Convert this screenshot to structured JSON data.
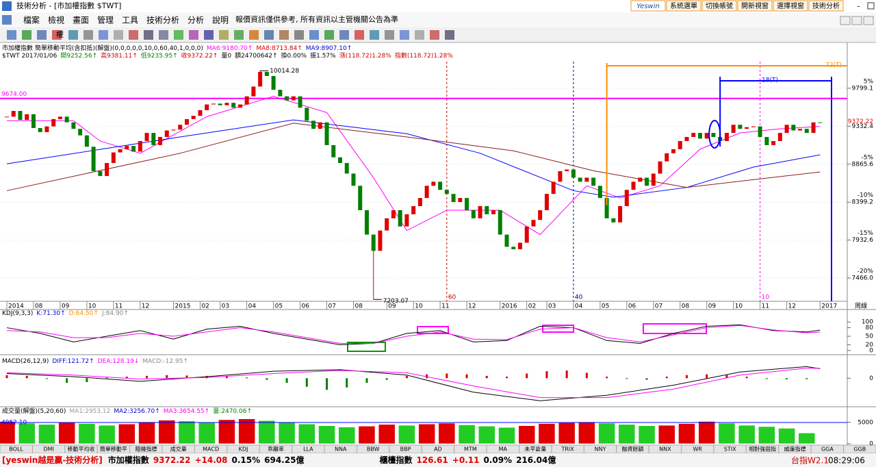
{
  "window": {
    "title": "技術分析 - [市加權指數 $TWT]",
    "buttons": [
      "Yeswin",
      "系統選單",
      "切換帳號",
      "開新視窗",
      "選擇視窗",
      "技術分析"
    ]
  },
  "menu": {
    "items": [
      "檔案",
      "檢視",
      "畫面",
      "管理",
      "工具",
      "技術分析",
      "分析",
      "說明"
    ],
    "notice": "報價資訊僅供參考, 所有資訊以主管機關公告為準"
  },
  "toolbar": {
    "label": "權"
  },
  "info": {
    "line1": [
      "市加權指數 簡單移動平均(含扣抵)(解盤)(0,0,0,0,0,10,0,60,40,1,0,0,0)",
      "MA6:9180.70↑",
      "MA8:8713.84↑",
      "MA9:8907.10↑"
    ],
    "line2": [
      "$TWT 2017/01/06",
      "開9252.56↑",
      "高9381.11↑",
      "低9235.95↑",
      "收9372.22↑",
      "量0",
      "額24700642↑",
      "換0.00%",
      "振1.57%",
      "漲(118.72)1.28%",
      "指數(118.72)1.28%"
    ]
  },
  "chart_data": [
    {
      "type": "candlestick",
      "up_color": "#e00000",
      "down_color": "#008000",
      "values": [
        9450,
        9520,
        9410,
        9480,
        9310,
        9260,
        9330,
        9420,
        9450,
        9380,
        9300,
        9220,
        9080,
        8780,
        8720,
        8880,
        9010,
        9050,
        9090,
        9020,
        9150,
        9250,
        9100,
        9200,
        9280,
        9290,
        9350,
        9420,
        9460,
        9530,
        9600,
        9610,
        9590,
        9620,
        9560,
        9600,
        9700,
        9820,
        10000,
        9950,
        9780,
        9700,
        9650,
        9700,
        9560,
        9400,
        9300,
        9380,
        9100,
        8950,
        8880,
        8750,
        8600,
        8300,
        8000,
        7800,
        8050,
        8200,
        8300,
        8100,
        8250,
        8350,
        8450,
        8600,
        8650,
        8550,
        8500,
        8400,
        8450,
        8300,
        8200,
        8350,
        8250,
        8300,
        8000,
        7850,
        7820,
        7900,
        8100,
        8180,
        8300,
        8500,
        8650,
        8780,
        8800,
        8700,
        8650,
        8700,
        8600,
        8450,
        8200,
        8150,
        8350,
        8550,
        8650,
        8700,
        8600,
        8750,
        8900,
        9000,
        9050,
        9150,
        9200,
        9250,
        9180,
        9250,
        9200,
        9150,
        9250,
        9350,
        9300,
        9320,
        9330,
        9200,
        9100,
        9150,
        9250,
        9350,
        9280,
        9300,
        9250,
        9380,
        9372.22
      ],
      "ylim": [
        7180,
        10160
      ],
      "yticks": [
        9799.1,
        9332.4,
        8865.6,
        8399.2,
        7932.6,
        {
          "value": 7466,
          "label": "7466.0"
        }
      ],
      "pct_ticks": [
        {
          "value": 9799.1,
          "label": "5%"
        },
        {
          "value": 8865.6,
          "label": "-5%"
        },
        {
          "value": 8399.2,
          "label": "-10%"
        },
        {
          "value": 7932.6,
          "label": "-15%"
        },
        {
          "value": 7466,
          "label": "-20%"
        }
      ],
      "xticks": [
        {
          "value": 0,
          "label": "2014"
        },
        {
          "value": 4,
          "label": "08"
        },
        {
          "value": 8,
          "label": "09"
        },
        {
          "value": 12,
          "label": "10"
        },
        {
          "value": 16,
          "label": "11"
        },
        {
          "value": 20,
          "label": "12"
        },
        {
          "value": 25,
          "label": "2015"
        },
        {
          "value": 29,
          "label": "02"
        },
        {
          "value": 32,
          "label": "03"
        },
        {
          "value": 36,
          "label": "04"
        },
        {
          "value": 40,
          "label": "05"
        },
        {
          "value": 44,
          "label": "06"
        },
        {
          "value": 48,
          "label": "07"
        },
        {
          "value": 52,
          "label": "08"
        },
        {
          "value": 57,
          "label": "09"
        },
        {
          "value": 61,
          "label": "10"
        },
        {
          "value": 65,
          "label": "11"
        },
        {
          "value": 69,
          "label": "12"
        },
        {
          "value": 74,
          "label": "2016"
        },
        {
          "value": 78,
          "label": "02"
        },
        {
          "value": 81,
          "label": "03"
        },
        {
          "value": 85,
          "label": "04"
        },
        {
          "value": 89,
          "label": "05"
        },
        {
          "value": 93,
          "label": "06"
        },
        {
          "value": 97,
          "label": "07"
        },
        {
          "value": 101,
          "label": "08"
        },
        {
          "value": 105,
          "label": "09"
        },
        {
          "value": 109,
          "label": "10"
        },
        {
          "value": 113,
          "label": "11"
        },
        {
          "value": 117,
          "label": "12"
        },
        {
          "value": 122,
          "label": "2017"
        }
      ],
      "x_unit_label": "周線",
      "last_price": 9372.22,
      "reference_line": {
        "value": 9674,
        "label": "9674.00",
        "color": "#ff00ff"
      },
      "ma_lines": [
        {
          "color": "#ff00ff",
          "x": [
            0,
            10,
            14,
            20,
            30,
            40,
            48,
            55,
            60,
            66,
            74,
            80,
            87,
            92,
            98,
            104,
            110,
            116,
            122
          ],
          "values": [
            9400,
            9400,
            9150,
            9000,
            9450,
            9700,
            9500,
            8700,
            8050,
            8300,
            8300,
            8000,
            8600,
            8450,
            8600,
            9050,
            9250,
            9300,
            9330
          ]
        },
        {
          "color": "#0000ff",
          "x": [
            0,
            26,
            43,
            60,
            71,
            85,
            91,
            102,
            112,
            122
          ],
          "values": [
            8870,
            9200,
            9410,
            9240,
            9000,
            8540,
            8460,
            8580,
            8830,
            8980
          ]
        },
        {
          "color": "#8b1a1a",
          "x": [
            0,
            26,
            43,
            60,
            76,
            88,
            102,
            122
          ],
          "values": [
            8540,
            9000,
            9370,
            9200,
            9030,
            8785,
            8580,
            8770
          ]
        }
      ],
      "extremes": [
        {
          "x": 38,
          "value": 10014.28
        },
        {
          "x": 55,
          "value": 7203.07
        }
      ],
      "period_lines": [
        {
          "x": 66,
          "label": 60,
          "color": "#c00000"
        },
        {
          "x": 85,
          "label": 40,
          "color": "#000080"
        },
        {
          "x": 113,
          "label": 10,
          "color": "#ff00ff"
        }
      ],
      "cycles": [
        {
          "x": 90,
          "label": "72(T)",
          "color": "#ff8c00"
        },
        {
          "x": 107,
          "label": "18(T)",
          "color": "#0000ff"
        }
      ]
    },
    {
      "type": "line",
      "title": "KDJ(9,3,3)",
      "ylim": [
        -10,
        115
      ],
      "yticks": [
        0,
        20,
        50,
        80,
        100
      ],
      "header_items": [
        "J:84.90↑"
      ],
      "x": [
        0,
        5,
        10,
        15,
        20,
        25,
        30,
        35,
        40,
        45,
        50,
        55,
        60,
        65,
        70,
        75,
        80,
        85,
        90,
        95,
        100,
        105,
        110,
        115,
        120,
        122
      ],
      "series": [
        {
          "name": "K:71.30↑",
          "color": "#000000",
          "values": [
            80,
            60,
            30,
            50,
            70,
            40,
            75,
            85,
            60,
            40,
            20,
            25,
            60,
            70,
            30,
            35,
            85,
            80,
            35,
            25,
            60,
            85,
            90,
            70,
            65,
            71.3
          ]
        },
        {
          "name": "D:64.50↑",
          "color": "#ff00ff",
          "values": [
            70,
            65,
            45,
            45,
            60,
            50,
            65,
            80,
            65,
            45,
            25,
            25,
            50,
            65,
            40,
            38,
            75,
            80,
            45,
            30,
            55,
            80,
            88,
            72,
            62,
            64.5
          ]
        }
      ]
    },
    {
      "type": "macd",
      "title": "MACD(26,12,9)",
      "ylim": [
        -350,
        250
      ],
      "yticks": [
        0
      ],
      "bars": {
        "name": "MACD:-12.95↑",
        "color": "#e00000",
        "color_negative": "#008000",
        "x": [
          0,
          3,
          6,
          9,
          12,
          15,
          18,
          21,
          24,
          27,
          30,
          33,
          36,
          39,
          42,
          45,
          48,
          51,
          54,
          57,
          60,
          63,
          66,
          69,
          72,
          75,
          78,
          81,
          84,
          87,
          90,
          93,
          96,
          99,
          102,
          105,
          108,
          111,
          114,
          117,
          120
        ],
        "values": [
          40,
          30,
          -10,
          -60,
          -50,
          10,
          20,
          30,
          40,
          35,
          30,
          20,
          10,
          -20,
          -60,
          -110,
          -150,
          -120,
          -60,
          -20,
          30,
          50,
          60,
          50,
          30,
          20,
          60,
          90,
          100,
          70,
          20,
          -10,
          -20,
          20,
          40,
          50,
          40,
          20,
          -10,
          -15,
          -13
        ]
      },
      "x": [
        0,
        10,
        20,
        30,
        40,
        50,
        60,
        70,
        80,
        90,
        100,
        110,
        120,
        122
      ],
      "series": [
        {
          "name": "DIFF:121.72↑",
          "color": "#000000",
          "values": [
            60,
            20,
            -40,
            20,
            90,
            110,
            40,
            -180,
            -290,
            -220,
            -90,
            80,
            150,
            122
          ]
        },
        {
          "name": "DEA:128.19↓",
          "color": "#ff00ff",
          "values": [
            70,
            40,
            -10,
            10,
            60,
            100,
            70,
            -100,
            -250,
            -250,
            -140,
            40,
            130,
            128
          ]
        }
      ]
    },
    {
      "type": "volume",
      "title": "成交量(解盤)(5,20,60)",
      "ylim": [
        0,
        8000
      ],
      "yticks": [
        0,
        5000
      ],
      "header_items": [
        "MA1:2953.12",
        "MA2:3256.70↑",
        "MA3:3654.55↑"
      ],
      "reference_line": {
        "value": 4952.1,
        "label": "4952.10",
        "color": "#0000ff"
      },
      "bars": {
        "name": "量:2470.06↑",
        "color": "#e00000",
        "color_down": "#22cc22",
        "x": [
          0,
          3,
          6,
          9,
          12,
          15,
          18,
          21,
          24,
          27,
          30,
          33,
          36,
          39,
          42,
          45,
          48,
          51,
          54,
          57,
          60,
          63,
          66,
          69,
          72,
          75,
          78,
          81,
          84,
          87,
          90,
          93,
          96,
          99,
          102,
          105,
          108,
          111,
          114,
          117,
          120
        ],
        "values": [
          5200,
          4800,
          4500,
          5000,
          4700,
          4300,
          4600,
          5100,
          5500,
          5300,
          4900,
          5600,
          5800,
          5400,
          5000,
          4600,
          4200,
          3900,
          4100,
          4500,
          4300,
          4600,
          4800,
          4400,
          4100,
          3800,
          4200,
          4700,
          4900,
          5100,
          4800,
          4500,
          4200,
          4300,
          4700,
          5200,
          4800,
          4300,
          4000,
          3600,
          2500
        ]
      }
    }
  ],
  "tabs": [
    "BOLL",
    "DMI",
    "移動平均收",
    "簡單移動平",
    "隨機指標",
    "成交量",
    "MACD",
    "KDJ",
    "乖離率",
    "LLA",
    "NNA",
    "BBW",
    "BBP",
    "AD",
    "MTM",
    "MA",
    "未平倉量",
    "TRIX",
    "NNY",
    "融資餘額",
    "NNX",
    "WR",
    "STIX",
    "相對強弱指",
    "威廉指標",
    "GGA",
    "GGB"
  ],
  "status": {
    "brand": "[yeswin越是贏-技術分析]",
    "index1": {
      "name": "市加權指數",
      "price": "9372.22",
      "change": "+14.08",
      "pct": "0.15%",
      "amount": "694.25億"
    },
    "index2": {
      "name": "櫃檯指數",
      "price": "126.61",
      "change": "+0.11",
      "pct": "0.09%",
      "amount": "216.04億"
    },
    "product": "台指W2.1",
    "time": "08:29:06"
  }
}
